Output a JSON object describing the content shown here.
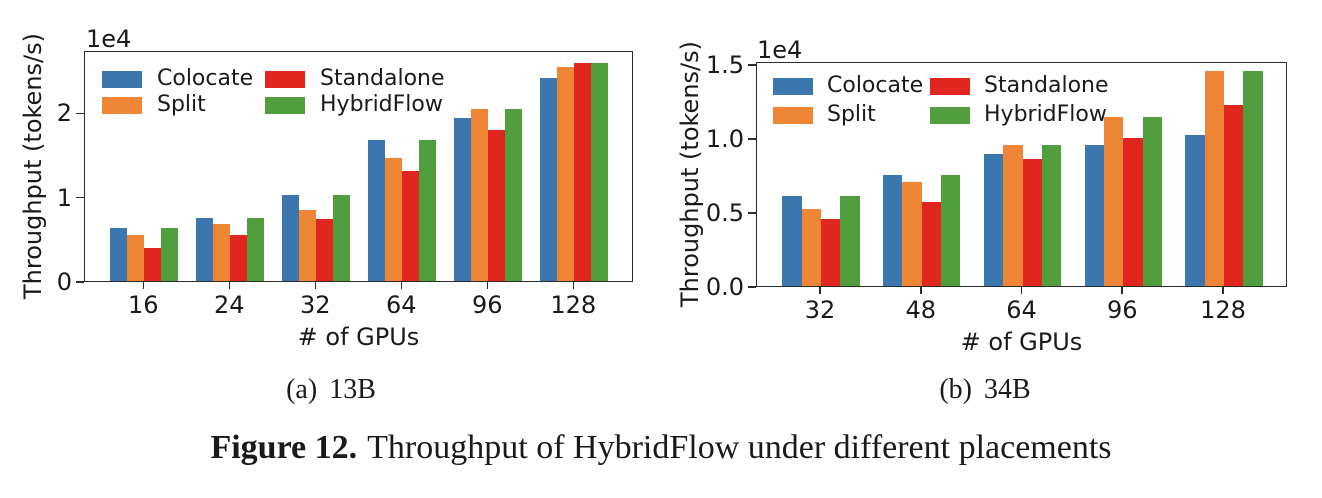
{
  "figure": {
    "caption_bold": "Figure 12.",
    "caption_text": "Throughput of HybridFlow under different placements"
  },
  "palette": {
    "colocate": "#3b76af",
    "split": "#ef8636",
    "standalone": "#e0261f",
    "hybridflow": "#519e3e"
  },
  "subcaptions": [
    {
      "index": "(a)",
      "label": "13B"
    },
    {
      "index": "(b)",
      "label": "34B"
    }
  ],
  "chart_data": [
    {
      "type": "bar",
      "subcaption": "(a) 13B",
      "offset_text": "1e4",
      "ylabel": "Throughput (tokens/s)",
      "xlabel": "# of GPUs",
      "categories": [
        "16",
        "24",
        "32",
        "64",
        "96",
        "128"
      ],
      "series": [
        {
          "name": "Colocate",
          "color": "#3b76af",
          "values": [
            0.63,
            0.75,
            1.02,
            1.67,
            1.93,
            2.41
          ]
        },
        {
          "name": "Split",
          "color": "#ef8636",
          "values": [
            0.54,
            0.68,
            0.84,
            1.46,
            2.04,
            2.54
          ]
        },
        {
          "name": "Standalone",
          "color": "#e0261f",
          "values": [
            0.39,
            0.54,
            0.74,
            1.31,
            1.79,
            2.59
          ]
        },
        {
          "name": "HybridFlow",
          "color": "#519e3e",
          "values": [
            0.63,
            0.75,
            1.02,
            1.67,
            2.04,
            2.59
          ]
        }
      ],
      "unit_multiplier": "1e4",
      "yticks": [
        {
          "value": 0,
          "label": "0"
        },
        {
          "value": 1,
          "label": "1"
        },
        {
          "value": 2,
          "label": "2"
        }
      ],
      "ylim": [
        0,
        2.74
      ],
      "grid": false,
      "legend_position": "upper-left",
      "legend_columns": 2
    },
    {
      "type": "bar",
      "subcaption": "(b) 34B",
      "offset_text": "1e4",
      "ylabel": "Throughput (tokens/s)",
      "xlabel": "# of GPUs",
      "categories": [
        "32",
        "48",
        "64",
        "96",
        "128"
      ],
      "series": [
        {
          "name": "Colocate",
          "color": "#3b76af",
          "values": [
            0.61,
            0.75,
            0.89,
            0.95,
            1.02
          ]
        },
        {
          "name": "Split",
          "color": "#ef8636",
          "values": [
            0.52,
            0.7,
            0.95,
            1.14,
            1.45
          ]
        },
        {
          "name": "Standalone",
          "color": "#e0261f",
          "values": [
            0.45,
            0.57,
            0.86,
            1.0,
            1.22
          ]
        },
        {
          "name": "HybridFlow",
          "color": "#519e3e",
          "values": [
            0.61,
            0.75,
            0.95,
            1.14,
            1.45
          ]
        }
      ],
      "unit_multiplier": "1e4",
      "yticks": [
        {
          "value": 0.0,
          "label": "0.0"
        },
        {
          "value": 0.5,
          "label": "0.5"
        },
        {
          "value": 1.0,
          "label": "1.0"
        },
        {
          "value": 1.5,
          "label": "1.5"
        }
      ],
      "ylim": [
        0,
        1.52
      ],
      "grid": false,
      "legend_position": "upper-left",
      "legend_columns": 2
    }
  ]
}
